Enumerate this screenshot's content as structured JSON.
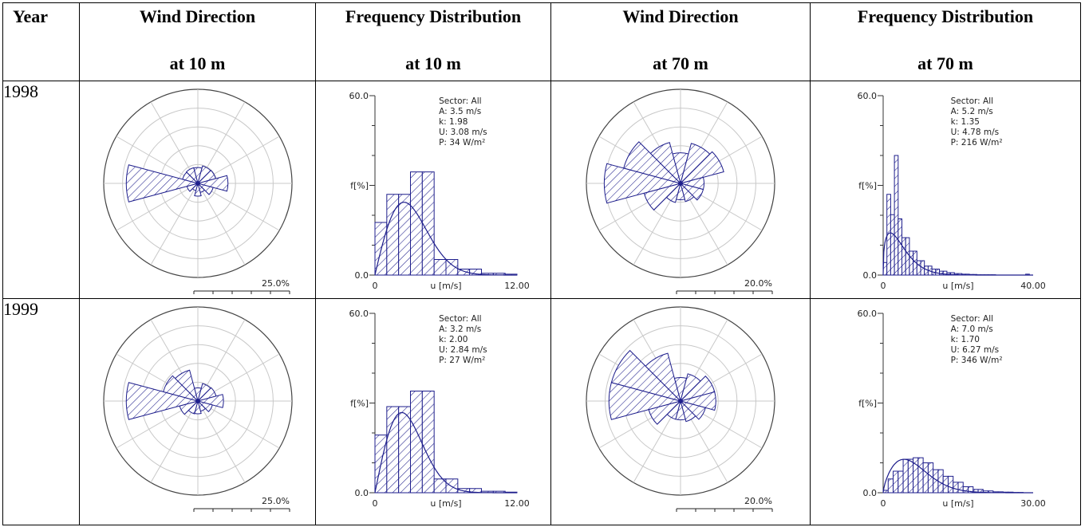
{
  "header": {
    "year": "Year",
    "wd10_top": "Wind Direction",
    "wd10_bottom": "at 10 m",
    "fd10_top": "Frequency Distribution",
    "fd10_bottom": "at 10 m",
    "wd70_top": "Wind Direction",
    "wd70_bottom": "at 70 m",
    "fd70_top": "Frequency Distribution",
    "fd70_bottom": "at 70 m"
  },
  "rows": [
    {
      "year": "1998"
    },
    {
      "year": "1999"
    }
  ],
  "chart_data": [
    {
      "type": "polar-bar",
      "id": "rose-1998-10m",
      "sectors_deg": [
        0,
        30,
        60,
        90,
        120,
        150,
        180,
        210,
        240,
        270,
        300,
        330
      ],
      "values": [
        4.2,
        4.8,
        4.9,
        8.0,
        4.2,
        2.5,
        3.4,
        2.0,
        3.0,
        19.0,
        4.2,
        4.3
      ],
      "range_max": 25.0,
      "scale_label": "25.0%"
    },
    {
      "type": "histogram",
      "id": "freq-1998-10m",
      "ylim": [
        0,
        60
      ],
      "y_ticks": [
        "60.0",
        "0.0"
      ],
      "ylabel": "f[%]",
      "xlabel": "u [m/s]",
      "x_ticks": [
        "0",
        "12.00"
      ],
      "xlim": [
        0,
        12
      ],
      "bins_x": [
        0,
        1,
        2,
        3,
        4,
        5,
        6,
        7,
        8,
        9,
        10,
        11
      ],
      "bins_pct": [
        17.6,
        27.0,
        27.0,
        34.5,
        34.5,
        5.2,
        5.2,
        2.0,
        2.0,
        0.6,
        0.6,
        0.3
      ],
      "weibull_A": 3.5,
      "weibull_k": 1.98,
      "stats": [
        "Sector: All",
        "A: 3.5 m/s",
        "k: 1.98",
        "U: 3.08 m/s",
        "P: 34 W/m²"
      ]
    },
    {
      "type": "polar-bar",
      "id": "rose-1998-70m",
      "sectors_deg": [
        0,
        30,
        60,
        90,
        120,
        150,
        180,
        210,
        240,
        270,
        300,
        330
      ],
      "values": [
        6.5,
        8.8,
        9.5,
        5.0,
        5.0,
        4.0,
        3.5,
        4.2,
        8.0,
        16.2,
        12.5,
        9.0
      ],
      "range_max": 20.0,
      "scale_label": "20.0%"
    },
    {
      "type": "histogram",
      "id": "freq-1998-70m",
      "ylim": [
        0,
        60
      ],
      "y_ticks": [
        "60.0",
        "0.0"
      ],
      "ylabel": "f[%]",
      "xlabel": "u [m/s]",
      "x_ticks": [
        "0",
        "40.00"
      ],
      "xlim": [
        0,
        40
      ],
      "bins_x": [
        0,
        1,
        2,
        3,
        4,
        5,
        6,
        7,
        8,
        9,
        10,
        11,
        12,
        13,
        14,
        15,
        16,
        17,
        18,
        19,
        20,
        21,
        22,
        23,
        24,
        25,
        26,
        27,
        28,
        29,
        30,
        31,
        32,
        33,
        34,
        35,
        36,
        37,
        38,
        39
      ],
      "bins_pct": [
        4.2,
        27.0,
        20.2,
        40.0,
        18.8,
        12.5,
        12.5,
        8.0,
        8.0,
        4.8,
        4.8,
        3.0,
        3.0,
        2.0,
        2.0,
        1.3,
        1.3,
        0.8,
        0.8,
        0.5,
        0.5,
        0.3,
        0.3,
        0.2,
        0.2,
        0.1,
        0.1,
        0.1,
        0.1,
        0.1,
        0,
        0,
        0,
        0,
        0,
        0,
        0,
        0,
        0.3,
        0
      ],
      "weibull_A": 5.2,
      "weibull_k": 1.35,
      "stats": [
        "Sector: All",
        "A: 5.2 m/s",
        "k: 1.35",
        "U: 4.78 m/s",
        "P: 216 W/m²"
      ]
    },
    {
      "type": "polar-bar",
      "id": "rose-1999-10m",
      "sectors_deg": [
        0,
        30,
        60,
        90,
        120,
        150,
        180,
        210,
        240,
        270,
        300,
        330
      ],
      "values": [
        3.5,
        4.8,
        5.0,
        6.8,
        4.0,
        2.8,
        3.4,
        3.5,
        5.0,
        19.0,
        9.5,
        8.5
      ],
      "range_max": 25.0,
      "scale_label": "25.0%"
    },
    {
      "type": "histogram",
      "id": "freq-1999-10m",
      "ylim": [
        0,
        60
      ],
      "y_ticks": [
        "60.0",
        "0.0"
      ],
      "ylabel": "f[%]",
      "xlabel": "u [m/s]",
      "x_ticks": [
        "0",
        "12.00"
      ],
      "xlim": [
        0,
        12
      ],
      "bins_x": [
        0,
        1,
        2,
        3,
        4,
        5,
        6,
        7,
        8,
        9,
        10,
        11
      ],
      "bins_pct": [
        19.3,
        28.8,
        28.8,
        34.0,
        34.0,
        4.6,
        4.6,
        1.4,
        1.4,
        0.5,
        0.5,
        0.2
      ],
      "weibull_A": 3.2,
      "weibull_k": 2.0,
      "stats": [
        "Sector: All",
        "A: 3.2 m/s",
        "k: 2.00",
        "U: 2.84 m/s",
        "P: 27 W/m²"
      ]
    },
    {
      "type": "polar-bar",
      "id": "rose-1999-70m",
      "sectors_deg": [
        0,
        30,
        60,
        90,
        120,
        150,
        180,
        210,
        240,
        270,
        300,
        330
      ],
      "values": [
        5.0,
        6.0,
        7.5,
        7.5,
        5.5,
        4.5,
        4.0,
        4.0,
        7.0,
        15.2,
        15.2,
        10.5
      ],
      "range_max": 20.0,
      "scale_label": "20.0%"
    },
    {
      "type": "histogram",
      "id": "freq-1999-70m",
      "ylim": [
        0,
        60
      ],
      "y_ticks": [
        "60.0",
        "0.0"
      ],
      "ylabel": "f[%]",
      "xlabel": "u [m/s]",
      "x_ticks": [
        "0",
        "30.00"
      ],
      "xlim": [
        0,
        30
      ],
      "bins_x": [
        0,
        1,
        2,
        3,
        4,
        5,
        6,
        7,
        8,
        9,
        10,
        11,
        12,
        13,
        14,
        15,
        16,
        17,
        18,
        19,
        20,
        21,
        22,
        23,
        24,
        25,
        26,
        27,
        28,
        29
      ],
      "bins_pct": [
        0.8,
        4.6,
        7.2,
        7.2,
        11.2,
        11.2,
        11.7,
        11.7,
        10.0,
        10.0,
        7.7,
        7.7,
        5.5,
        5.5,
        3.5,
        3.5,
        2.0,
        2.0,
        1.1,
        1.1,
        0.6,
        0.6,
        0.3,
        0.3,
        0.2,
        0.2,
        0.1,
        0.1,
        0,
        0
      ],
      "weibull_A": 7.0,
      "weibull_k": 1.7,
      "stats": [
        "Sector: All",
        "A: 7.0 m/s",
        "k: 1.70",
        "U: 6.27 m/s",
        "P: 346 W/m²"
      ]
    }
  ]
}
